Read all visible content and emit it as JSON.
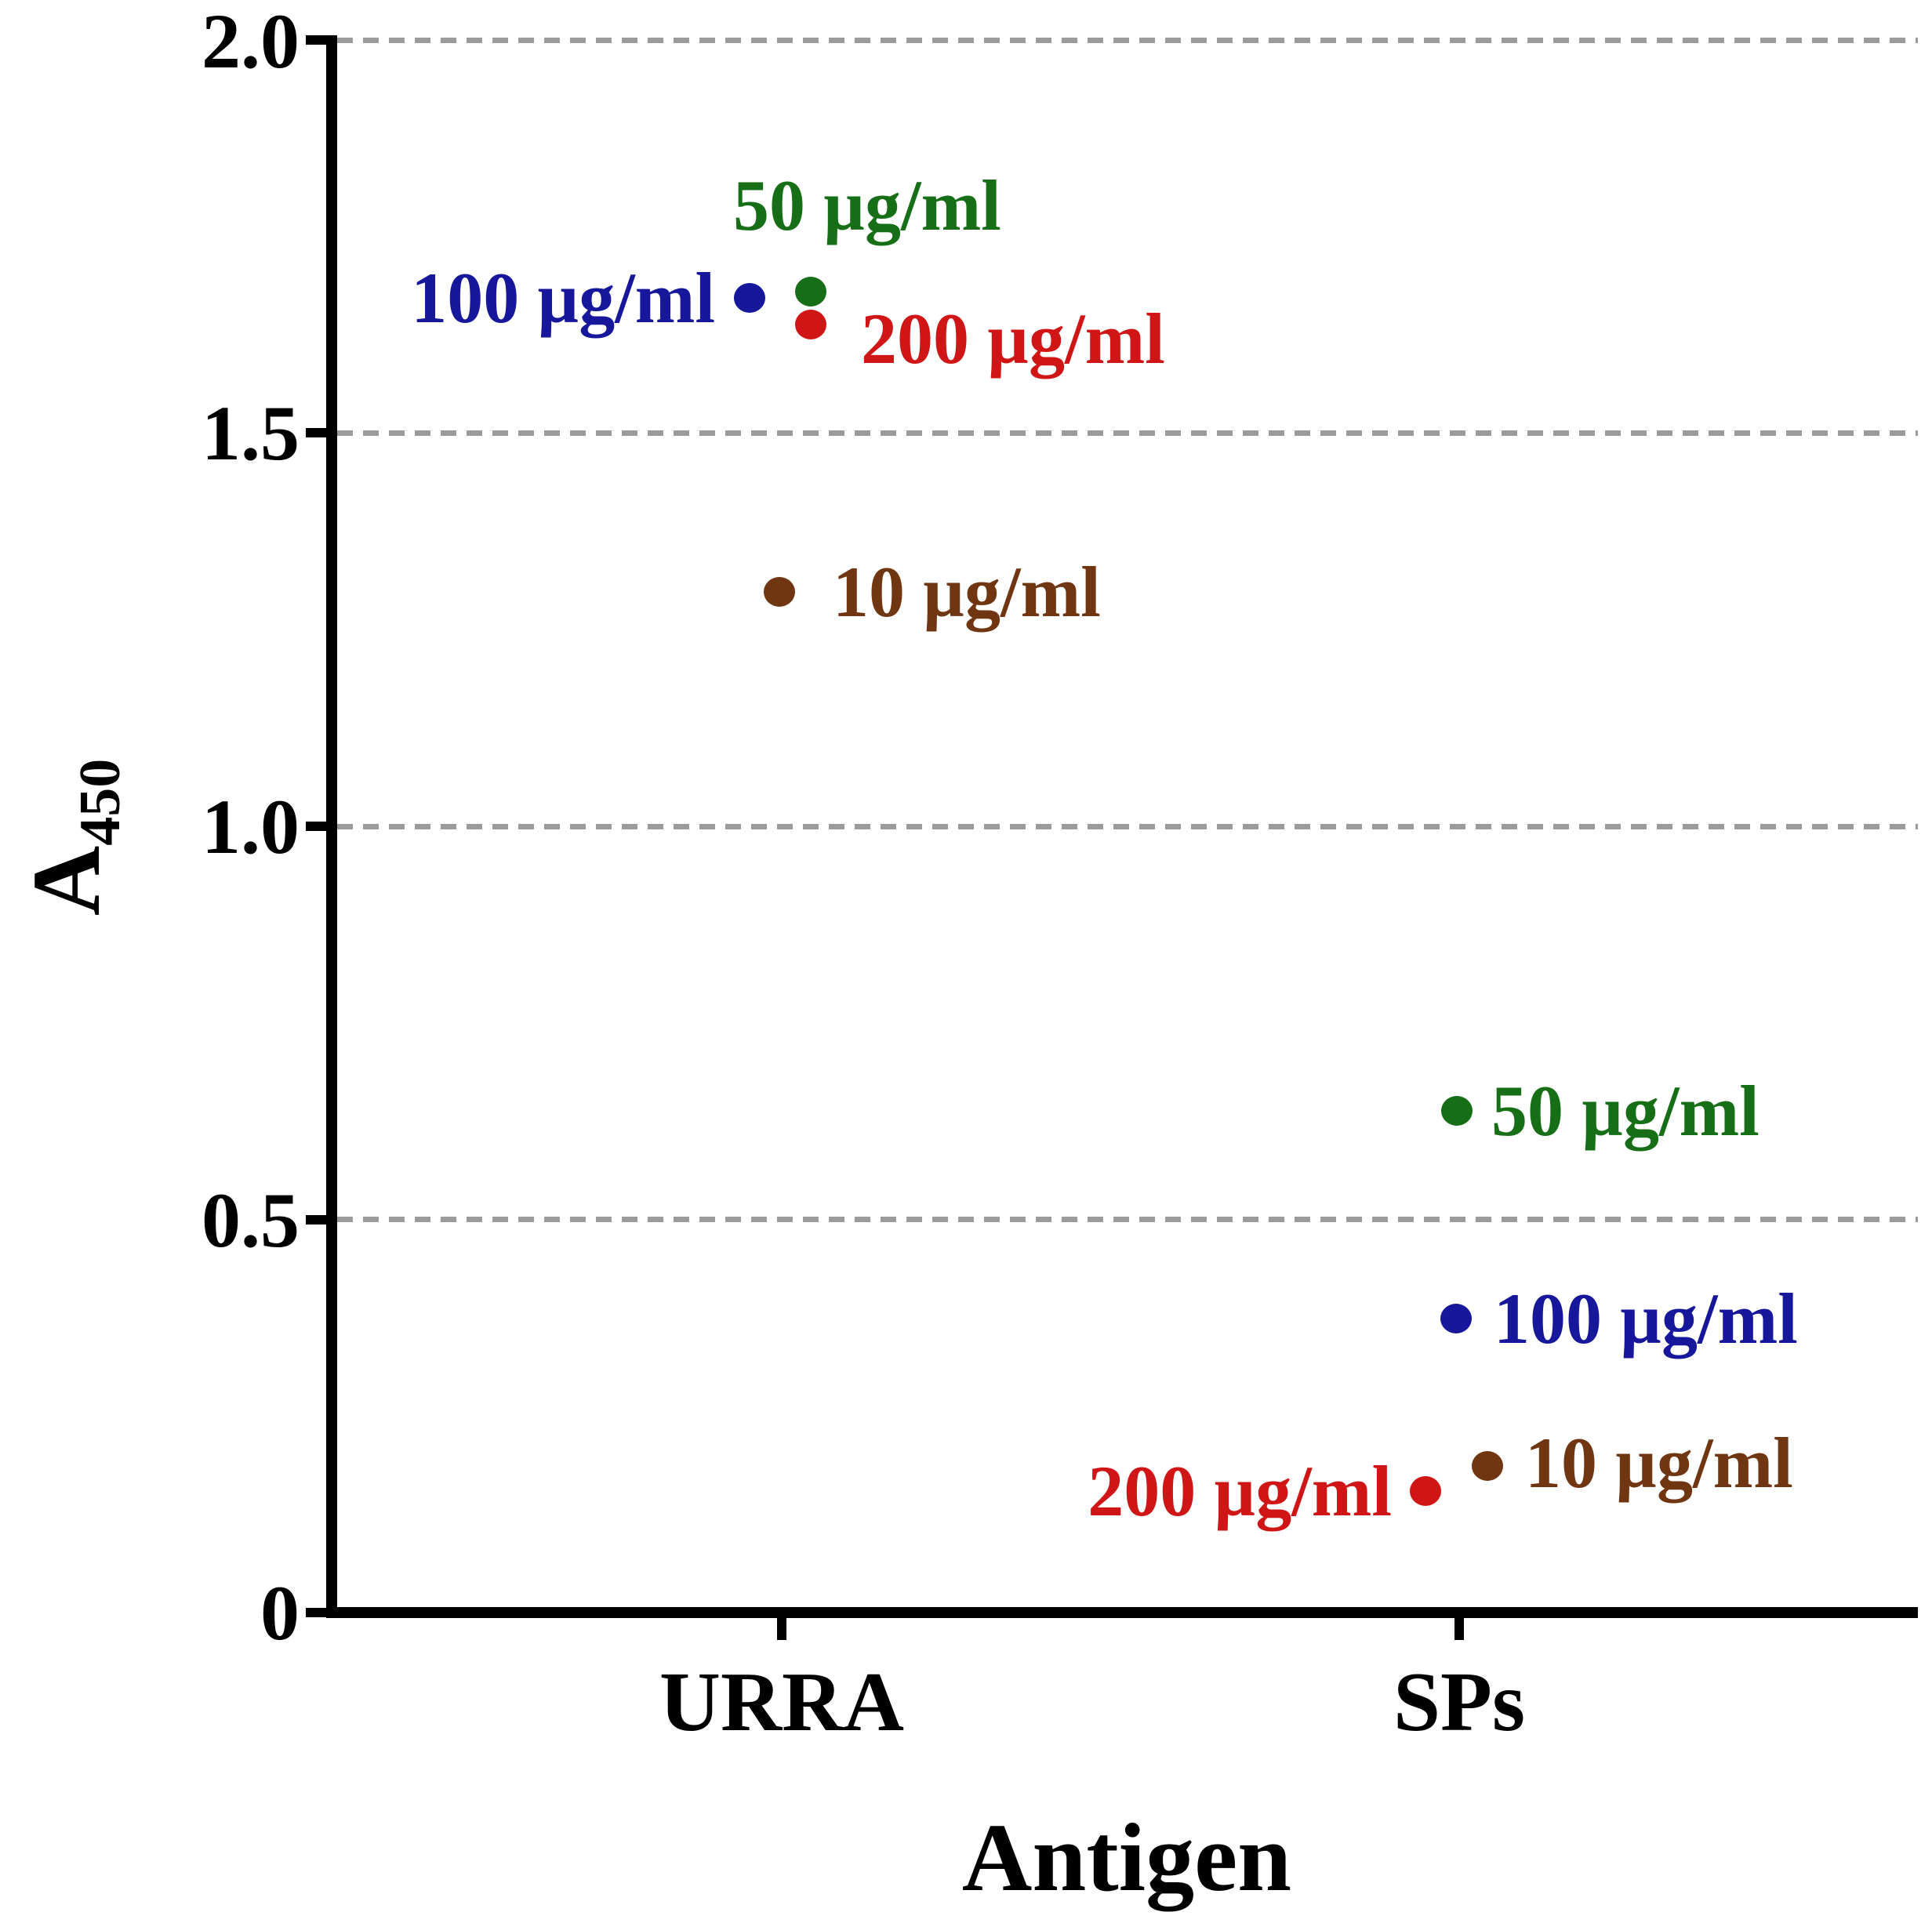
{
  "figure": {
    "xlabel": "Antigen",
    "ylabel_base": "A",
    "ylabel_sub": "450",
    "categories": [
      "URRA",
      "SPs"
    ],
    "ytick_labels": [
      "2.0",
      "1.5",
      "1.0",
      "0.5",
      "0"
    ]
  },
  "colors": {
    "blue": "#17179B",
    "green": "#166E16",
    "red": "#CF1515",
    "brown": "#6F3611",
    "gridline": "#9B9B9B",
    "axis": "#000000"
  },
  "points": [
    {
      "group": "URRA",
      "label": "100 µg/ml",
      "color": "#17179B",
      "value": 1.67
    },
    {
      "group": "URRA",
      "label": "50 µg/ml",
      "color": "#166E16",
      "value": 1.68
    },
    {
      "group": "URRA",
      "label": "200 µg/ml",
      "color": "#CF1515",
      "value": 1.64
    },
    {
      "group": "URRA",
      "label": "10 µg/ml",
      "color": "#6F3611",
      "value": 1.3
    },
    {
      "group": "SPs",
      "label": "50 µg/ml",
      "color": "#166E16",
      "value": 0.64
    },
    {
      "group": "SPs",
      "label": "100 µg/ml",
      "color": "#17179B",
      "value": 0.37
    },
    {
      "group": "SPs",
      "label": "10 µg/ml",
      "color": "#6F3611",
      "value": 0.19
    },
    {
      "group": "SPs",
      "label": "200 µg/ml",
      "color": "#CF1515",
      "value": 0.15
    }
  ],
  "chart_data": {
    "type": "scatter",
    "title": "",
    "xlabel": "Antigen",
    "ylabel": "A450",
    "categories": [
      "URRA",
      "SPs"
    ],
    "series": [
      {
        "name": "10 µg/ml",
        "color": "#6F3611",
        "values": [
          1.3,
          0.19
        ]
      },
      {
        "name": "50 µg/ml",
        "color": "#166E16",
        "values": [
          1.68,
          0.64
        ]
      },
      {
        "name": "100 µg/ml",
        "color": "#17179B",
        "values": [
          1.67,
          0.37
        ]
      },
      {
        "name": "200 µg/ml",
        "color": "#CF1515",
        "values": [
          1.64,
          0.15
        ]
      }
    ],
    "ylim": [
      0,
      2.0
    ],
    "yticks": [
      0,
      0.5,
      1.0,
      1.5,
      2.0
    ],
    "grid": "horizontal dashed gray lines at each major y tick",
    "legend": "none (points labeled inline next to each marker)"
  }
}
